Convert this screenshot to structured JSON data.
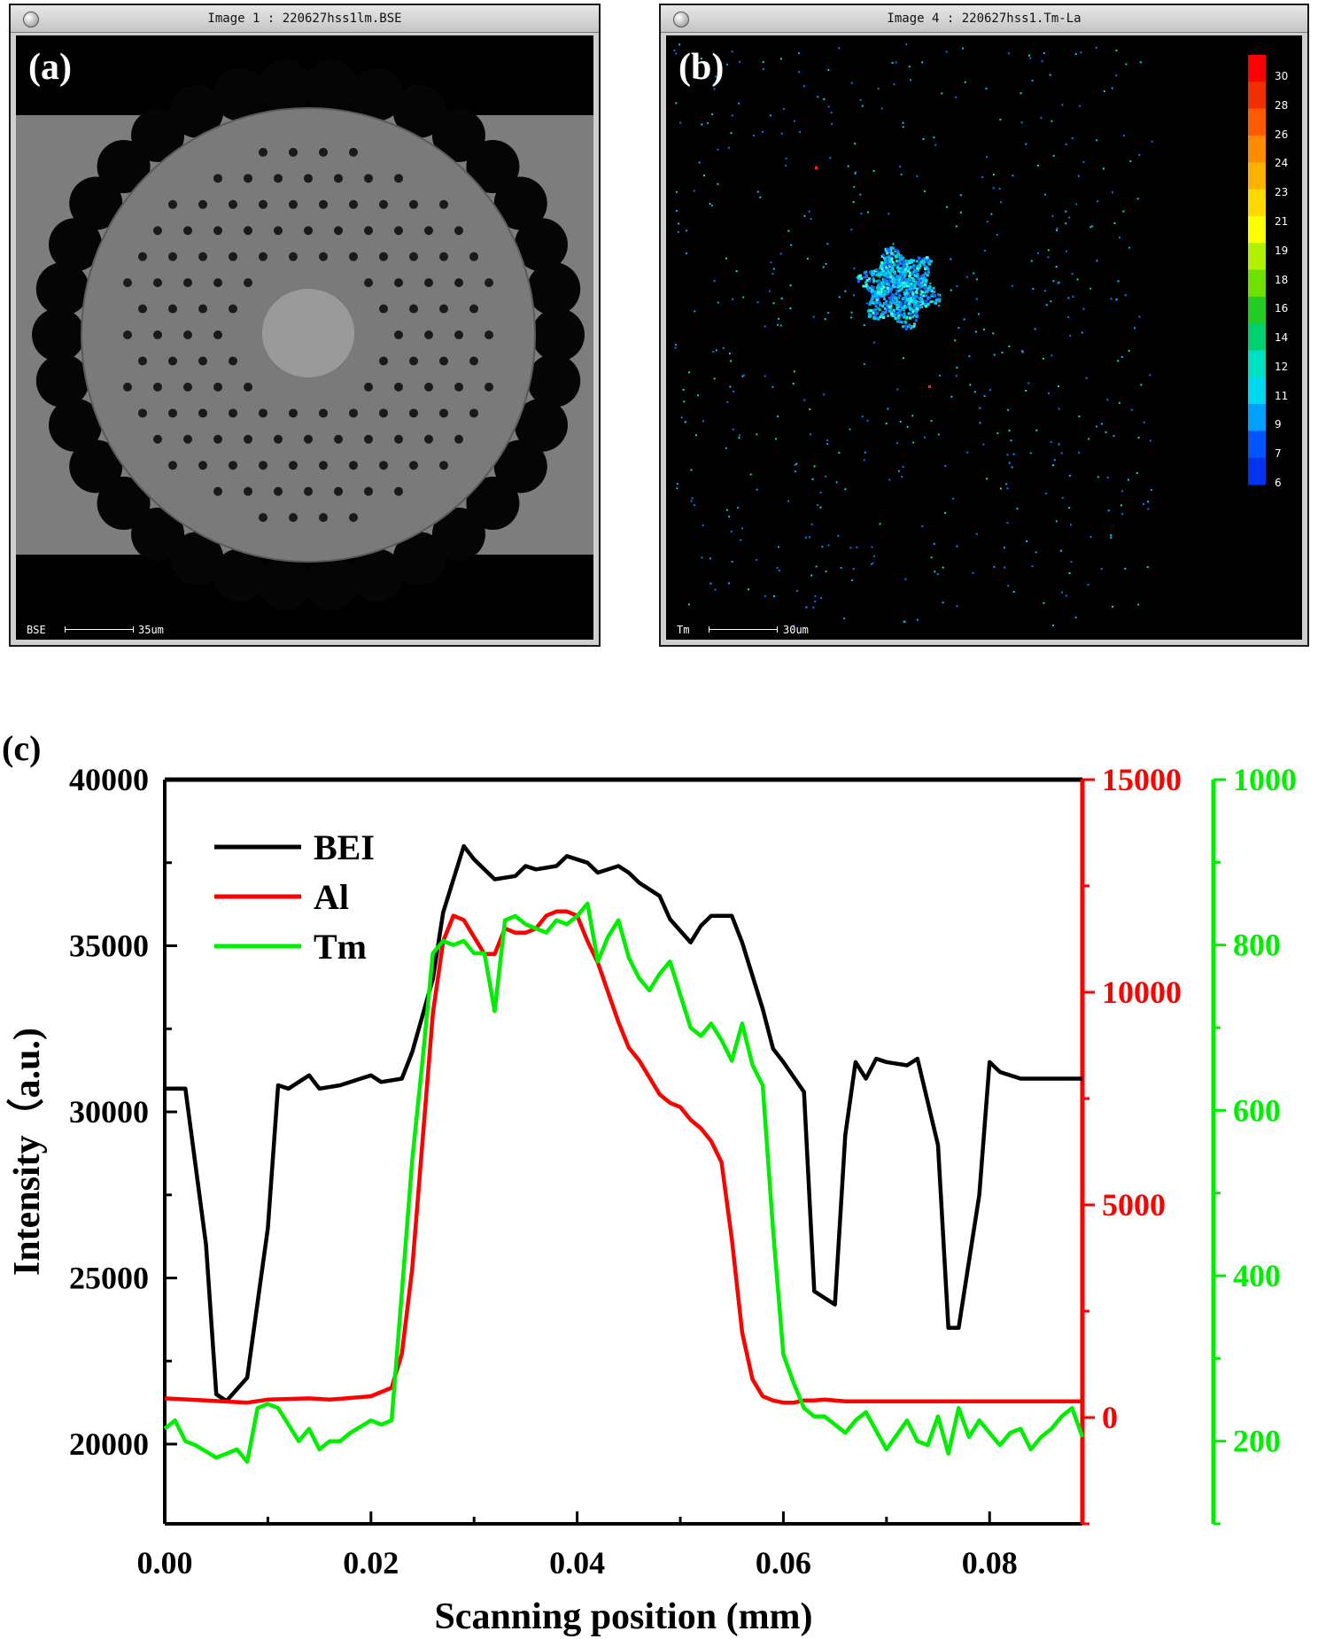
{
  "panel_a": {
    "label": "(a)",
    "title": "Image 1 : 220627hss1lm.BSE",
    "scalebar_mode": "BSE",
    "scalebar_length": "35um"
  },
  "panel_b": {
    "label": "(b)",
    "title": "Image 4 : 220627hss1.Tm-La",
    "scalebar_mode": "Tm",
    "scalebar_length": "30um",
    "colorbar_ticks": [
      "30",
      "28",
      "26",
      "24",
      "23",
      "21",
      "19",
      "18",
      "16",
      "14",
      "12",
      "11",
      "9",
      "7",
      "6"
    ],
    "colorbar_colors": [
      "#ff0000",
      "#f03000",
      "#ff5a00",
      "#ff8c00",
      "#ffb000",
      "#ffd800",
      "#ffff00",
      "#b0f000",
      "#70e000",
      "#22cc22",
      "#00d070",
      "#00e0c0",
      "#00d8f0",
      "#00a0ff",
      "#0055ff",
      "#0033ee"
    ]
  },
  "panel_c": {
    "label": "(c)"
  },
  "chart_data": {
    "type": "line",
    "xlabel": "Scanning position (mm)",
    "ylabel": "Intensity（a.u.)",
    "xlim": [
      0,
      0.089
    ],
    "x_ticks": [
      "0.00",
      "0.02",
      "0.04",
      "0.06",
      "0.08"
    ],
    "y_left": {
      "lim": [
        17600,
        40000
      ],
      "ticks": [
        "20000",
        "25000",
        "30000",
        "35000",
        "40000"
      ],
      "color": "#000000"
    },
    "y_right1": {
      "lim": [
        -2500,
        15000
      ],
      "ticks": [
        "0",
        "5000",
        "10000",
        "15000"
      ],
      "color": "#ff0000"
    },
    "y_right2": {
      "lim": [
        100,
        1000
      ],
      "ticks": [
        "200",
        "400",
        "600",
        "800",
        "1000"
      ],
      "color": "#00ee00"
    },
    "legend_placement": "top-left",
    "series": [
      {
        "name": "BEI",
        "color": "#000000",
        "axis": "left",
        "x": [
          0.0,
          0.002,
          0.004,
          0.005,
          0.006,
          0.008,
          0.01,
          0.011,
          0.012,
          0.014,
          0.015,
          0.017,
          0.019,
          0.02,
          0.021,
          0.023,
          0.024,
          0.026,
          0.027,
          0.029,
          0.03,
          0.032,
          0.034,
          0.035,
          0.036,
          0.038,
          0.039,
          0.041,
          0.042,
          0.044,
          0.045,
          0.046,
          0.048,
          0.049,
          0.051,
          0.052,
          0.053,
          0.055,
          0.056,
          0.058,
          0.059,
          0.06,
          0.062,
          0.063,
          0.065,
          0.066,
          0.067,
          0.068,
          0.069,
          0.07,
          0.072,
          0.073,
          0.075,
          0.076,
          0.077,
          0.079,
          0.08,
          0.081,
          0.083,
          0.084,
          0.086,
          0.087,
          0.089
        ],
        "values": [
          30700,
          30700,
          26000,
          21500,
          21300,
          22000,
          26500,
          30800,
          30700,
          31100,
          30700,
          30800,
          31000,
          31100,
          30900,
          31000,
          31800,
          34000,
          36000,
          38000,
          37600,
          37000,
          37100,
          37400,
          37300,
          37400,
          37700,
          37500,
          37200,
          37400,
          37200,
          36900,
          36500,
          35800,
          35100,
          35600,
          35900,
          35900,
          35100,
          33100,
          31900,
          31500,
          30600,
          24600,
          24200,
          29300,
          31500,
          31000,
          31600,
          31500,
          31400,
          31600,
          29000,
          23500,
          23500,
          27500,
          31500,
          31200,
          31000,
          31000,
          31000,
          31000,
          31000
        ],
        "_comment": ""
      },
      {
        "name": "Al",
        "color": "#ff0000",
        "axis": "right1",
        "x": [
          0.0,
          0.004,
          0.008,
          0.01,
          0.014,
          0.016,
          0.02,
          0.022,
          0.023,
          0.024,
          0.025,
          0.026,
          0.027,
          0.028,
          0.029,
          0.03,
          0.031,
          0.032,
          0.033,
          0.034,
          0.035,
          0.036,
          0.037,
          0.038,
          0.039,
          0.04,
          0.041,
          0.042,
          0.043,
          0.044,
          0.045,
          0.046,
          0.047,
          0.048,
          0.049,
          0.05,
          0.051,
          0.052,
          0.053,
          0.054,
          0.055,
          0.056,
          0.057,
          0.058,
          0.059,
          0.06,
          0.061,
          0.062,
          0.063,
          0.064,
          0.065,
          0.066,
          0.068,
          0.07,
          0.074,
          0.078,
          0.08,
          0.084,
          0.089
        ],
        "values": [
          450,
          400,
          350,
          420,
          450,
          420,
          500,
          700,
          1500,
          3500,
          6500,
          9500,
          11200,
          11800,
          11700,
          11300,
          10900,
          10900,
          11500,
          11400,
          11400,
          11500,
          11800,
          11900,
          11900,
          11800,
          11200,
          10700,
          10000,
          9300,
          8700,
          8400,
          8000,
          7600,
          7400,
          7300,
          7000,
          6800,
          6500,
          6000,
          4200,
          2000,
          900,
          500,
          400,
          350,
          350,
          400,
          400,
          420,
          400,
          380,
          380,
          380,
          380,
          380,
          380,
          380,
          380
        ],
        "_comment": ""
      },
      {
        "name": "Tm",
        "color": "#00ee00",
        "axis": "right2",
        "x": [
          0.0,
          0.001,
          0.002,
          0.003,
          0.005,
          0.006,
          0.007,
          0.008,
          0.009,
          0.01,
          0.011,
          0.013,
          0.014,
          0.015,
          0.016,
          0.017,
          0.018,
          0.02,
          0.021,
          0.022,
          0.023,
          0.024,
          0.025,
          0.026,
          0.027,
          0.028,
          0.029,
          0.03,
          0.031,
          0.032,
          0.033,
          0.034,
          0.035,
          0.036,
          0.037,
          0.038,
          0.039,
          0.04,
          0.041,
          0.042,
          0.043,
          0.044,
          0.045,
          0.046,
          0.047,
          0.048,
          0.049,
          0.05,
          0.051,
          0.052,
          0.053,
          0.054,
          0.055,
          0.056,
          0.057,
          0.058,
          0.059,
          0.06,
          0.061,
          0.062,
          0.063,
          0.064,
          0.065,
          0.066,
          0.067,
          0.068,
          0.07,
          0.072,
          0.073,
          0.074,
          0.075,
          0.076,
          0.077,
          0.078,
          0.079,
          0.08,
          0.081,
          0.082,
          0.083,
          0.084,
          0.085,
          0.086,
          0.087,
          0.088,
          0.089
        ],
        "values": [
          215,
          225,
          200,
          195,
          180,
          185,
          190,
          175,
          240,
          245,
          240,
          200,
          215,
          190,
          200,
          200,
          210,
          225,
          220,
          225,
          380,
          540,
          660,
          790,
          805,
          800,
          805,
          790,
          790,
          720,
          830,
          835,
          825,
          820,
          815,
          830,
          825,
          835,
          850,
          780,
          810,
          830,
          785,
          760,
          745,
          765,
          780,
          740,
          700,
          690,
          705,
          685,
          660,
          705,
          655,
          630,
          455,
          305,
          270,
          240,
          230,
          230,
          220,
          210,
          225,
          235,
          190,
          225,
          200,
          195,
          230,
          185,
          240,
          205,
          225,
          210,
          195,
          210,
          215,
          190,
          205,
          215,
          230,
          240,
          205
        ],
        "_comment": ""
      }
    ]
  }
}
